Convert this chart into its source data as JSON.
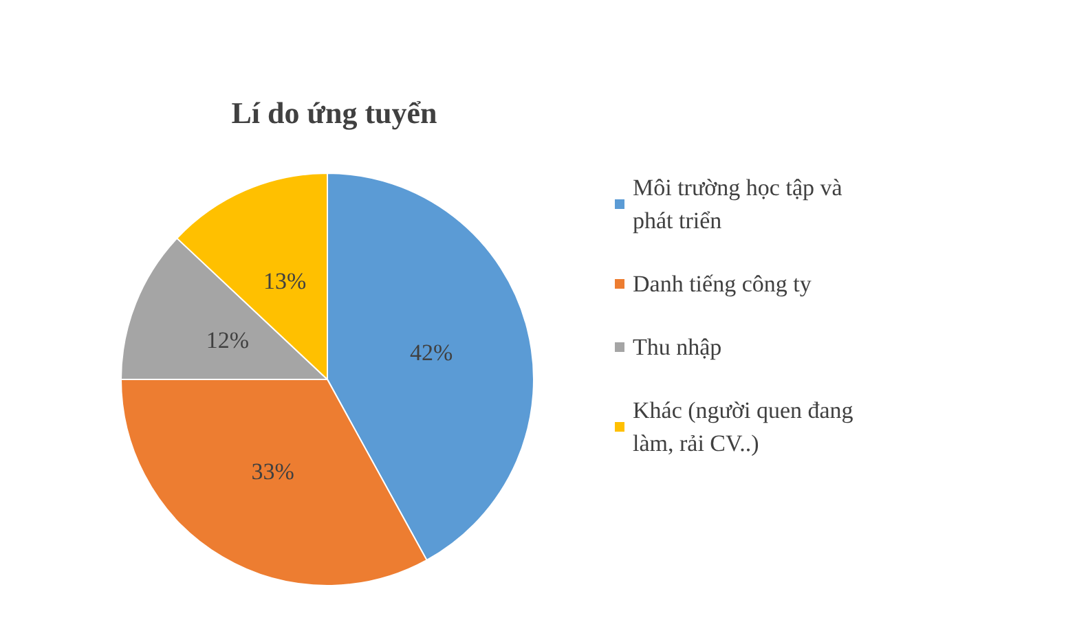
{
  "chart_data": {
    "type": "pie",
    "title": "Lí do ứng tuyển",
    "categories": [
      "Môi trường học tập và phát triển",
      "Danh tiếng công ty",
      "Thu nhập",
      "Khác (người quen đang làm, rải CV..)"
    ],
    "values": [
      42,
      33,
      12,
      13
    ],
    "colors": [
      "#5b9bd5",
      "#ed7d31",
      "#a5a5a5",
      "#ffc000"
    ],
    "value_labels": [
      "42%",
      "33%",
      "12%",
      "13%"
    ],
    "legend": "right"
  }
}
